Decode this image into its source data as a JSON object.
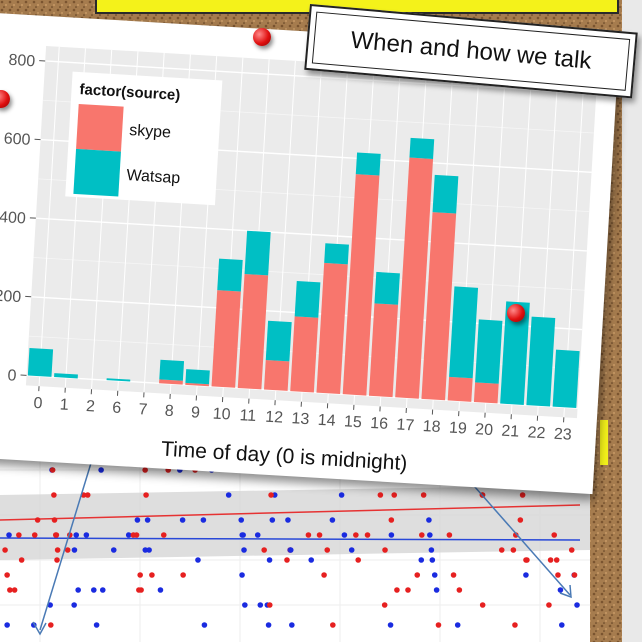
{
  "title_card": {
    "text": "When and how we talk"
  },
  "colors": {
    "skype": "#f8766d",
    "watsap": "#00bfc4",
    "panel": "#ebebeb",
    "grid": "#ffffff"
  },
  "chart_data": {
    "type": "bar",
    "stacked": true,
    "xlabel": "Time of day (0 is midnight)",
    "ylabel": "",
    "categories": [
      "0",
      "1",
      "2",
      "6",
      "7",
      "8",
      "9",
      "10",
      "11",
      "12",
      "13",
      "14",
      "15",
      "16",
      "17",
      "18",
      "19",
      "20",
      "21",
      "22",
      "23"
    ],
    "series": [
      {
        "name": "skype",
        "values": [
          0,
          0,
          0,
          0,
          0,
          10,
          5,
          245,
          290,
          75,
          190,
          330,
          560,
          235,
          610,
          475,
          60,
          50,
          0,
          0,
          0
        ]
      },
      {
        "name": "Watsap",
        "values": [
          70,
          10,
          0,
          5,
          0,
          50,
          35,
          80,
          110,
          100,
          90,
          50,
          55,
          80,
          50,
          95,
          230,
          160,
          260,
          225,
          145
        ]
      }
    ],
    "ylim": [
      0,
      800
    ],
    "yticks": [
      0,
      200,
      400,
      600,
      800
    ],
    "ytick_labels": [
      "0",
      "200",
      "400",
      "600",
      "800"
    ],
    "legend": {
      "title": "factor(source)",
      "entries": [
        "skype",
        "Watsap"
      ],
      "placement": "top-left"
    },
    "grid": true
  }
}
